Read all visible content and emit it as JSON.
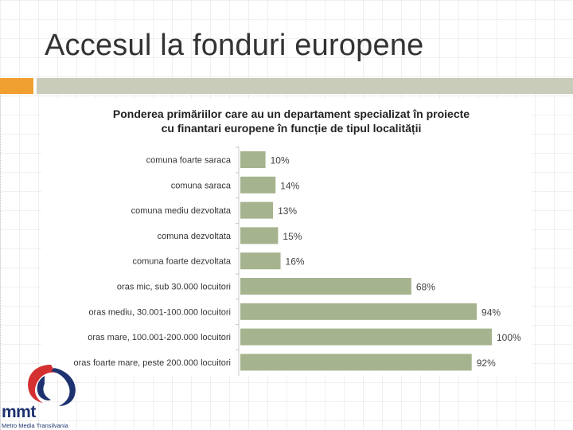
{
  "slide": {
    "title": "Accesul la fonduri europene"
  },
  "colors": {
    "bar": "#a5b48e",
    "accent": "#f0a030",
    "divider": "#c8ccb8",
    "logo_blue": "#1e3270",
    "logo_red": "#d43030"
  },
  "chart_data": {
    "type": "bar",
    "orientation": "horizontal",
    "title_line1": "Ponderea primăriilor care au un departament specializat în proiecte",
    "title_line2": "cu finantari europene  în funcție de tipul localității",
    "categories": [
      "comuna foarte saraca",
      "comuna saraca",
      "comuna mediu dezvoltata",
      "comuna dezvoltata",
      "comuna foarte dezvoltata",
      "oras mic, sub 30.000 locuitori",
      "oras mediu, 30.001-100.000 locuitori",
      "oras mare, 100.001-200.000 locuitori",
      "oras foarte mare, peste 200.000 locuitori"
    ],
    "values": [
      10,
      14,
      13,
      15,
      16,
      68,
      94,
      100,
      92
    ],
    "data_labels": [
      "10%",
      "14%",
      "13%",
      "15%",
      "16%",
      "68%",
      "94%",
      "100%",
      "92%"
    ],
    "xlim": [
      0,
      100
    ],
    "grid": false,
    "legend": "none"
  },
  "logo": {
    "name": "mmt",
    "subtitle": "Metro Media Transilvania"
  }
}
